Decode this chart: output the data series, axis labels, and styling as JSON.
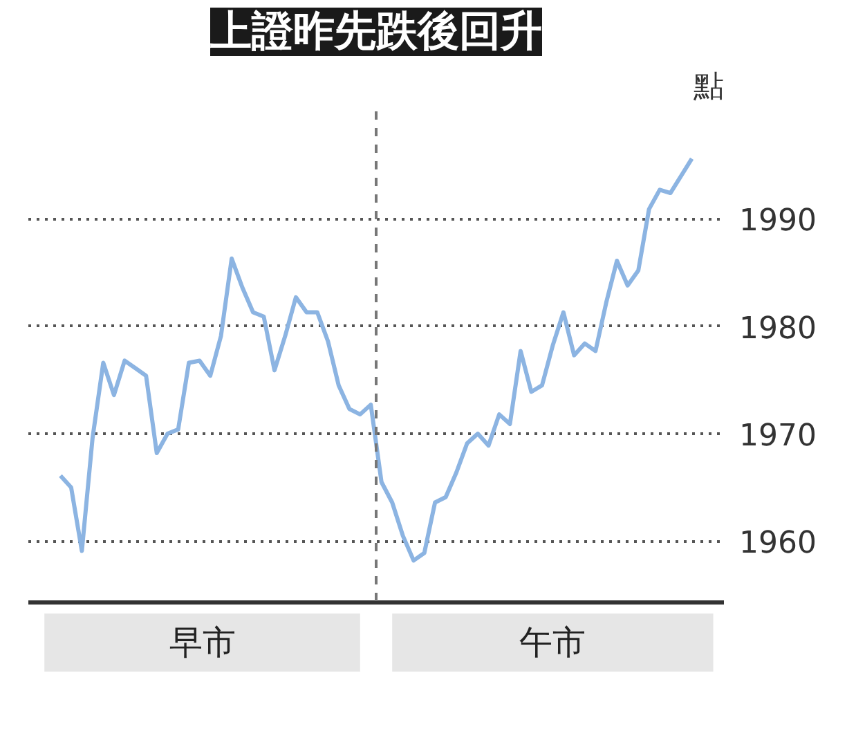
{
  "chart_data": {
    "type": "line",
    "title": "上證昨先跌後回升",
    "ylabel": "點",
    "categories": [
      null,
      null,
      null,
      null,
      null,
      null,
      null,
      null,
      null,
      null,
      null,
      null,
      null,
      null,
      null,
      null,
      null,
      null,
      null,
      null,
      null,
      null,
      null,
      null,
      null,
      null,
      null,
      null,
      null,
      null,
      null,
      null,
      null,
      null,
      null,
      null,
      null,
      null,
      null,
      null,
      null,
      null,
      null,
      null,
      null,
      null,
      null,
      null,
      null,
      null,
      null,
      null,
      null,
      null,
      null,
      null,
      null,
      null,
      null,
      null
    ],
    "series": [
      {
        "color": "#8cb4e2",
        "values": [
          1966.1,
          1965.0,
          1959.1,
          1969.6,
          1976.6,
          1973.6,
          1976.8,
          1976.1,
          1975.4,
          1968.2,
          1970.0,
          1970.4,
          1976.6,
          1976.8,
          1975.4,
          1979.1,
          1986.3,
          1983.6,
          1981.3,
          1980.9,
          1975.9,
          1979.1,
          1982.7,
          1981.3,
          1981.3,
          1978.6,
          1974.5,
          1972.3,
          1971.8,
          1972.7,
          1965.5,
          1963.6,
          1960.5,
          1958.2,
          1958.9,
          1963.6,
          1964.1,
          1966.4,
          1969.1,
          1970.0,
          1968.9,
          1971.8,
          1970.9,
          1977.7,
          1973.9,
          1974.5,
          1978.2,
          1981.3,
          1977.3,
          1978.4,
          1977.7,
          1982.2,
          1986.1,
          1983.8,
          1985.2,
          1990.9,
          1992.7,
          1992.4,
          1994.0,
          1995.6
        ]
      }
    ],
    "ylim": [
      1954.3,
      2000
    ],
    "yticks": [
      1960,
      1970,
      1980,
      1990
    ],
    "grid": "y",
    "tick_labels": "y",
    "line_style": "solid",
    "annotations": [
      "早市",
      "午市"
    ]
  }
}
